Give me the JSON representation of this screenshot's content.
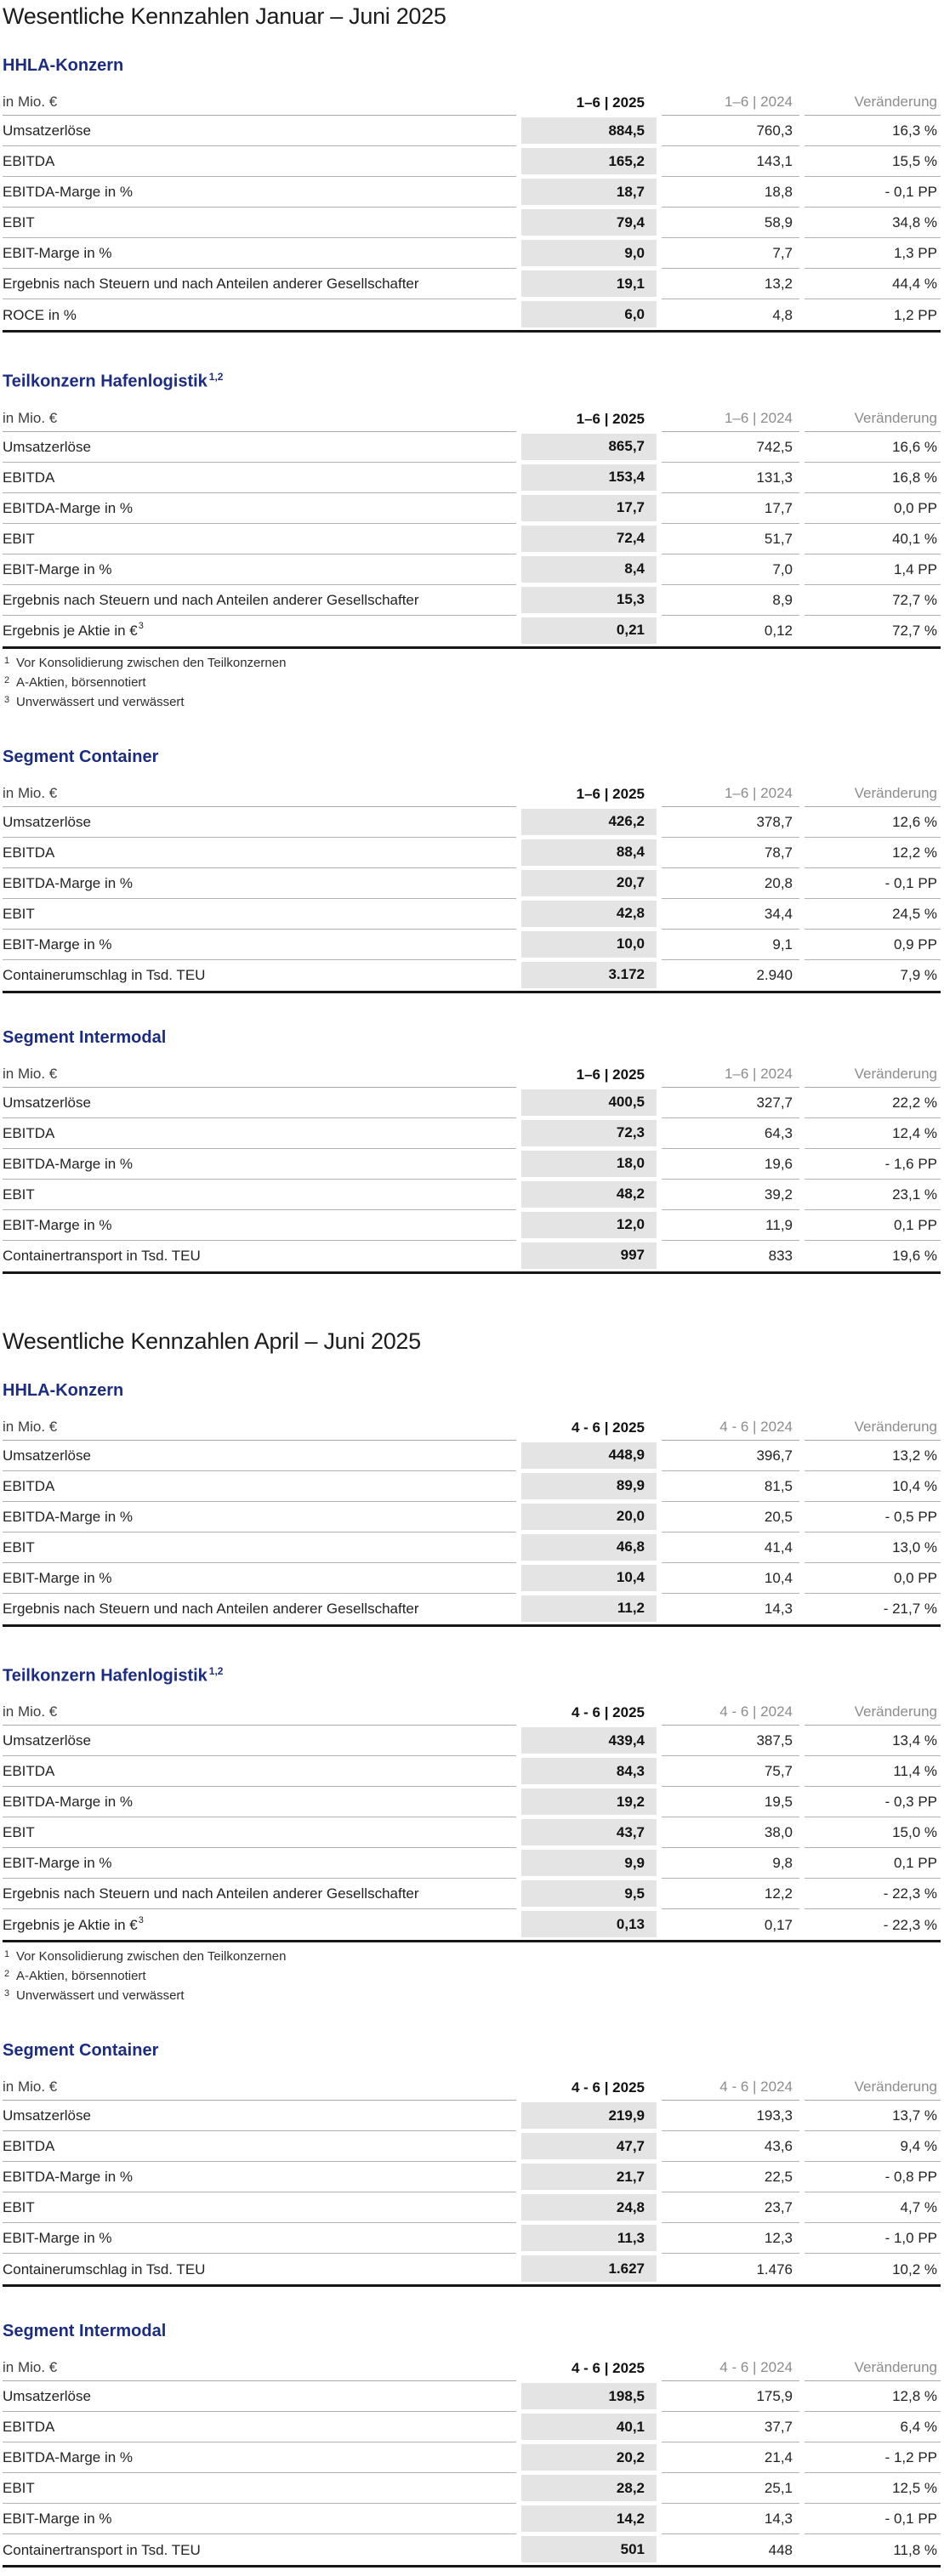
{
  "theme": {
    "heading_color": "#1d2d7e",
    "highlight_band_color": "#e5e4e5",
    "rule_color": "#b2b2b2",
    "table_end_rule_color": "#161616"
  },
  "page": {
    "sections": [
      {
        "title": "Wesentliche Kennzahlen Januar – Juni 2025",
        "tables": [
          {
            "heading": "HHLA-Konzern",
            "columns": [
              "in Mio. €",
              "1–6 | 2025",
              "1–6 | 2024",
              "Veränderung"
            ],
            "rows": [
              {
                "label": "Umsatzerlöse",
                "values": [
                  "884,5",
                  "760,3",
                  "16,3 %"
                ]
              },
              {
                "label": "EBITDA",
                "values": [
                  "165,2",
                  "143,1",
                  "15,5 %"
                ]
              },
              {
                "label": "EBITDA-Marge in %",
                "values": [
                  "18,7",
                  "18,8",
                  "- 0,1 PP"
                ]
              },
              {
                "label": "EBIT",
                "values": [
                  "79,4",
                  "58,9",
                  "34,8 %"
                ]
              },
              {
                "label": "EBIT-Marge in %",
                "values": [
                  "9,0",
                  "7,7",
                  "1,3 PP"
                ]
              },
              {
                "label": "Ergebnis nach Steuern und nach Anteilen anderer Gesellschafter",
                "values": [
                  "19,1",
                  "13,2",
                  "44,4 %"
                ]
              },
              {
                "label": "ROCE in %",
                "values": [
                  "6,0",
                  "4,8",
                  "1,2 PP"
                ]
              }
            ]
          },
          {
            "heading": "Teilkonzern Hafenlogistik",
            "heading_sup": "1,2",
            "columns": [
              "in Mio. €",
              "1–6 | 2025",
              "1–6 | 2024",
              "Veränderung"
            ],
            "rows": [
              {
                "label": "Umsatzerlöse",
                "values": [
                  "865,7",
                  "742,5",
                  "16,6 %"
                ]
              },
              {
                "label": "EBITDA",
                "values": [
                  "153,4",
                  "131,3",
                  "16,8 %"
                ]
              },
              {
                "label": "EBITDA-Marge in %",
                "values": [
                  "17,7",
                  "17,7",
                  "0,0 PP"
                ]
              },
              {
                "label": "EBIT",
                "values": [
                  "72,4",
                  "51,7",
                  "40,1 %"
                ]
              },
              {
                "label": "EBIT-Marge in %",
                "values": [
                  "8,4",
                  "7,0",
                  "1,4 PP"
                ]
              },
              {
                "label": "Ergebnis nach Steuern und nach Anteilen anderer Gesellschafter",
                "values": [
                  "15,3",
                  "8,9",
                  "72,7 %"
                ]
              },
              {
                "label": "Ergebnis je Aktie in €",
                "label_sup": "3",
                "values": [
                  "0,21",
                  "0,12",
                  "72,7 %"
                ]
              }
            ],
            "footnotes": [
              {
                "marker": "1",
                "text": "Vor Konsolidierung zwischen den Teilkonzernen"
              },
              {
                "marker": "2",
                "text": "A-Aktien, börsennotiert"
              },
              {
                "marker": "3",
                "text": "Unverwässert und verwässert"
              }
            ]
          },
          {
            "heading": "Segment Container",
            "columns": [
              "in Mio. €",
              "1–6 | 2025",
              "1–6 | 2024",
              "Veränderung"
            ],
            "rows": [
              {
                "label": "Umsatzerlöse",
                "values": [
                  "426,2",
                  "378,7",
                  "12,6 %"
                ]
              },
              {
                "label": "EBITDA",
                "values": [
                  "88,4",
                  "78,7",
                  "12,2 %"
                ]
              },
              {
                "label": "EBITDA-Marge in %",
                "values": [
                  "20,7",
                  "20,8",
                  "- 0,1 PP"
                ]
              },
              {
                "label": "EBIT",
                "values": [
                  "42,8",
                  "34,4",
                  "24,5 %"
                ]
              },
              {
                "label": "EBIT-Marge in %",
                "values": [
                  "10,0",
                  "9,1",
                  "0,9 PP"
                ]
              },
              {
                "label": "Containerumschlag in Tsd. TEU",
                "values": [
                  "3.172",
                  "2.940",
                  "7,9 %"
                ]
              }
            ]
          },
          {
            "heading": "Segment Intermodal",
            "columns": [
              "in Mio. €",
              "1–6 | 2025",
              "1–6 | 2024",
              "Veränderung"
            ],
            "rows": [
              {
                "label": "Umsatzerlöse",
                "values": [
                  "400,5",
                  "327,7",
                  "22,2 %"
                ]
              },
              {
                "label": "EBITDA",
                "values": [
                  "72,3",
                  "64,3",
                  "12,4 %"
                ]
              },
              {
                "label": "EBITDA-Marge in %",
                "values": [
                  "18,0",
                  "19,6",
                  "- 1,6 PP"
                ]
              },
              {
                "label": "EBIT",
                "values": [
                  "48,2",
                  "39,2",
                  "23,1 %"
                ]
              },
              {
                "label": "EBIT-Marge in %",
                "values": [
                  "12,0",
                  "11,9",
                  "0,1 PP"
                ]
              },
              {
                "label": "Containertransport in Tsd. TEU",
                "values": [
                  "997",
                  "833",
                  "19,6 %"
                ]
              }
            ]
          }
        ]
      },
      {
        "title": "Wesentliche Kennzahlen April – Juni 2025",
        "tables": [
          {
            "heading": "HHLA-Konzern",
            "columns": [
              "in Mio. €",
              "4 - 6 | 2025",
              "4 - 6 | 2024",
              "Veränderung"
            ],
            "rows": [
              {
                "label": "Umsatzerlöse",
                "values": [
                  "448,9",
                  "396,7",
                  "13,2 %"
                ]
              },
              {
                "label": "EBITDA",
                "values": [
                  "89,9",
                  "81,5",
                  "10,4 %"
                ]
              },
              {
                "label": "EBITDA-Marge in %",
                "values": [
                  "20,0",
                  "20,5",
                  "- 0,5 PP"
                ]
              },
              {
                "label": "EBIT",
                "values": [
                  "46,8",
                  "41,4",
                  "13,0 %"
                ]
              },
              {
                "label": "EBIT-Marge in %",
                "values": [
                  "10,4",
                  "10,4",
                  "0,0 PP"
                ]
              },
              {
                "label": "Ergebnis nach Steuern und nach Anteilen anderer Gesellschafter",
                "values": [
                  "11,2",
                  "14,3",
                  "- 21,7 %"
                ]
              }
            ]
          },
          {
            "heading": "Teilkonzern Hafenlogistik",
            "heading_sup": "1,2",
            "columns": [
              "in Mio. €",
              "4 - 6 | 2025",
              "4 - 6 | 2024",
              "Veränderung"
            ],
            "rows": [
              {
                "label": "Umsatzerlöse",
                "values": [
                  "439,4",
                  "387,5",
                  "13,4 %"
                ]
              },
              {
                "label": "EBITDA",
                "values": [
                  "84,3",
                  "75,7",
                  "11,4 %"
                ]
              },
              {
                "label": "EBITDA-Marge in %",
                "values": [
                  "19,2",
                  "19,5",
                  "- 0,3 PP"
                ]
              },
              {
                "label": "EBIT",
                "values": [
                  "43,7",
                  "38,0",
                  "15,0 %"
                ]
              },
              {
                "label": "EBIT-Marge in %",
                "values": [
                  "9,9",
                  "9,8",
                  "0,1 PP"
                ]
              },
              {
                "label": "Ergebnis nach Steuern und nach Anteilen anderer Gesellschafter",
                "values": [
                  "9,5",
                  "12,2",
                  "- 22,3 %"
                ]
              },
              {
                "label": "Ergebnis je Aktie in €",
                "label_sup": "3",
                "values": [
                  "0,13",
                  "0,17",
                  "- 22,3 %"
                ]
              }
            ],
            "footnotes": [
              {
                "marker": "1",
                "text": "Vor Konsolidierung zwischen den Teilkonzernen"
              },
              {
                "marker": "2",
                "text": "A-Aktien, börsennotiert"
              },
              {
                "marker": "3",
                "text": "Unverwässert und verwässert"
              }
            ]
          },
          {
            "heading": "Segment Container",
            "columns": [
              "in Mio. €",
              "4 - 6 | 2025",
              "4 - 6 | 2024",
              "Veränderung"
            ],
            "rows": [
              {
                "label": "Umsatzerlöse",
                "values": [
                  "219,9",
                  "193,3",
                  "13,7 %"
                ]
              },
              {
                "label": "EBITDA",
                "values": [
                  "47,7",
                  "43,6",
                  "9,4 %"
                ]
              },
              {
                "label": "EBITDA-Marge in %",
                "values": [
                  "21,7",
                  "22,5",
                  "- 0,8 PP"
                ]
              },
              {
                "label": "EBIT",
                "values": [
                  "24,8",
                  "23,7",
                  "4,7 %"
                ]
              },
              {
                "label": "EBIT-Marge in %",
                "values": [
                  "11,3",
                  "12,3",
                  "- 1,0 PP"
                ]
              },
              {
                "label": "Containerumschlag in Tsd. TEU",
                "values": [
                  "1.627",
                  "1.476",
                  "10,2 %"
                ]
              }
            ]
          },
          {
            "heading": "Segment Intermodal",
            "columns": [
              "in Mio. €",
              "4 - 6 | 2025",
              "4 - 6 | 2024",
              "Veränderung"
            ],
            "rows": [
              {
                "label": "Umsatzerlöse",
                "values": [
                  "198,5",
                  "175,9",
                  "12,8 %"
                ]
              },
              {
                "label": "EBITDA",
                "values": [
                  "40,1",
                  "37,7",
                  "6,4 %"
                ]
              },
              {
                "label": "EBITDA-Marge in %",
                "values": [
                  "20,2",
                  "21,4",
                  "- 1,2 PP"
                ]
              },
              {
                "label": "EBIT",
                "values": [
                  "28,2",
                  "25,1",
                  "12,5 %"
                ]
              },
              {
                "label": "EBIT-Marge in %",
                "values": [
                  "14,2",
                  "14,3",
                  "- 0,1 PP"
                ]
              },
              {
                "label": "Containertransport in Tsd. TEU",
                "values": [
                  "501",
                  "448",
                  "11,8 %"
                ]
              }
            ]
          }
        ]
      }
    ]
  }
}
